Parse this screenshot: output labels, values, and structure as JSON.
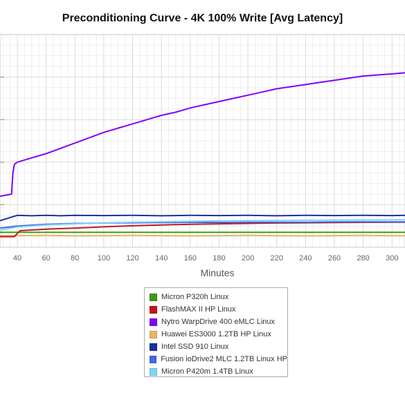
{
  "chart_data": {
    "type": "line",
    "title": "Preconditioning Curve - 4K 100% Write [Avg Latency]",
    "xlabel": "Minutes",
    "ylabel": "",
    "x_ticks": [
      40,
      60,
      80,
      100,
      120,
      140,
      160,
      180,
      200,
      220,
      240,
      260,
      280,
      300
    ],
    "xlim": [
      28,
      309
    ],
    "ylim": [
      0,
      100
    ],
    "grid": true,
    "legend_position": "bottom",
    "series": [
      {
        "name": "Micron P320h Linux",
        "color": "#3a9a0e",
        "x": [
          28,
          40,
          60,
          80,
          100,
          120,
          140,
          160,
          180,
          200,
          220,
          240,
          260,
          280,
          300,
          309
        ],
        "y": [
          7,
          7,
          7,
          7,
          7,
          7,
          7,
          7,
          7,
          7,
          7,
          7,
          7,
          7,
          7,
          7
        ]
      },
      {
        "name": "FlashMAX II HP Linux",
        "color": "#c0161c",
        "x": [
          28,
          38,
          40,
          42,
          60,
          80,
          100,
          120,
          140,
          160,
          180,
          200,
          220,
          240,
          260,
          280,
          300,
          309
        ],
        "y": [
          5,
          5,
          6.5,
          7.8,
          8.5,
          9,
          9.6,
          10.1,
          10.5,
          10.8,
          11,
          11.2,
          11.4,
          11.5,
          11.6,
          11.7,
          11.8,
          11.8
        ]
      },
      {
        "name": "Nytro WarpDrive 400 eMLC Linux",
        "color": "#8000ff",
        "x": [
          28,
          36,
          37,
          38,
          40,
          45,
          50,
          60,
          70,
          80,
          90,
          100,
          110,
          120,
          130,
          140,
          150,
          160,
          170,
          180,
          190,
          200,
          210,
          220,
          230,
          240,
          250,
          260,
          270,
          280,
          290,
          300,
          309
        ],
        "y": [
          24,
          25,
          35,
          39,
          40,
          41,
          42,
          44,
          46.5,
          49,
          51.5,
          54,
          56,
          58,
          60,
          62,
          63.5,
          65.5,
          67,
          68.5,
          70,
          71.5,
          73,
          74.5,
          75.5,
          76.5,
          77.5,
          78.5,
          79.5,
          80.5,
          81,
          81.5,
          82
        ]
      },
      {
        "name": "Huawei ES3000 1.2TB HP Linux",
        "color": "#e8b56a",
        "x": [
          28,
          40,
          60,
          80,
          100,
          120,
          140,
          160,
          180,
          200,
          220,
          240,
          260,
          280,
          300,
          309
        ],
        "y": [
          5.5,
          5.5,
          5.6,
          5.4,
          5.5,
          5.6,
          5.5,
          5.4,
          5.5,
          5.6,
          5.5,
          5.4,
          5.5,
          5.6,
          5.5,
          5.5
        ]
      },
      {
        "name": "Intel SSD 910 Linux",
        "color": "#1a2fa0",
        "x": [
          28,
          35,
          40,
          50,
          60,
          70,
          80,
          100,
          120,
          140,
          160,
          180,
          200,
          220,
          240,
          260,
          280,
          300,
          309
        ],
        "y": [
          12.5,
          14,
          15,
          14.8,
          15,
          14.8,
          15,
          14.9,
          15,
          14.8,
          15,
          14.9,
          15,
          14.8,
          15,
          14.9,
          15,
          14.9,
          15
        ]
      },
      {
        "name": "Fusion ioDrive2 MLC 1.2TB Linux HP",
        "color": "#4169e1",
        "x": [
          28,
          40,
          60,
          80,
          100,
          120,
          140,
          160,
          180,
          200,
          220,
          240,
          260,
          280,
          300,
          309
        ],
        "y": [
          9,
          10,
          10.8,
          11.2,
          11.4,
          11.5,
          11.6,
          11.7,
          11.7,
          11.8,
          11.8,
          11.8,
          11.9,
          11.9,
          11.9,
          11.9
        ]
      },
      {
        "name": "Micron P420m 1.4TB Linux",
        "color": "#7fd4f7",
        "x": [
          28,
          40,
          60,
          80,
          100,
          120,
          140,
          160,
          180,
          200,
          220,
          240,
          260,
          280,
          300,
          309
        ],
        "y": [
          8,
          9.5,
          10.5,
          11,
          11.5,
          11.8,
          12,
          12.2,
          12.4,
          12.5,
          12.6,
          12.7,
          12.8,
          12.8,
          12.9,
          12.9
        ]
      }
    ]
  }
}
